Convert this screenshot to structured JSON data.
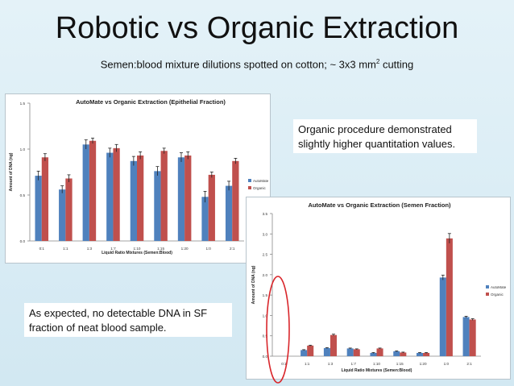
{
  "slide": {
    "title": "Robotic vs Organic Extraction",
    "subtitle_main": "Semen:blood mixture dilutions spotted on cotton; ~ 3x3 mm",
    "subtitle_sup": "2",
    "subtitle_tail": " cutting",
    "callout_top": "Organic procedure demonstrated slightly higher quantitation values.",
    "callout_bottom": "As expected, no detectable DNA in SF fraction of neat blood sample."
  },
  "colors": {
    "automate": "#4f81bd",
    "organic": "#c0504d",
    "ellipse": "#d9262b",
    "background": "#d9ecf4"
  },
  "chart_data": [
    {
      "type": "bar",
      "title": "AutoMate vs Organic Extraction (Epithelial Fraction)",
      "xlabel": "Liquid Ratio Mixtures (Semen:Blood)",
      "ylabel": "Amount of DNA (ng)",
      "ylim": [
        0,
        1.5
      ],
      "yticks": [
        "0.0",
        "0.5",
        "1.0",
        "1.5"
      ],
      "ytick_values": [
        0,
        0.5,
        1.0,
        1.5
      ],
      "categories": [
        "0:1",
        "1:1",
        "1:3",
        "1:7",
        "1:10",
        "1:15",
        "1:20",
        "1:0",
        "2:1"
      ],
      "series": [
        {
          "name": "AutoMate",
          "values": [
            0.71,
            0.56,
            1.05,
            0.96,
            0.87,
            0.76,
            0.91,
            0.48,
            0.6
          ]
        },
        {
          "name": "Organic",
          "values": [
            0.91,
            0.68,
            1.09,
            1.01,
            0.93,
            0.98,
            0.93,
            0.72,
            0.87
          ]
        }
      ],
      "errors": [
        [
          0.05,
          0.04,
          0.05,
          0.05,
          0.05,
          0.05,
          0.05,
          0.06,
          0.05
        ],
        [
          0.04,
          0.04,
          0.03,
          0.04,
          0.04,
          0.03,
          0.04,
          0.03,
          0.03
        ]
      ],
      "legend": "right",
      "grid": false
    },
    {
      "type": "bar",
      "title": "AutoMate vs Organic Extraction (Semen Fraction)",
      "xlabel": "Liquid Ratio Mixtures (Semen:Blood)",
      "ylabel": "Amount of DNA (ng)",
      "ylim": [
        0,
        3.5
      ],
      "yticks": [
        "0.0",
        "0.5",
        "1.0",
        "1.5",
        "2.0",
        "2.5",
        "3.0",
        "3.5"
      ],
      "ytick_values": [
        0,
        0.5,
        1.0,
        1.5,
        2.0,
        2.5,
        3.0,
        3.5
      ],
      "categories": [
        "0:1",
        "1:1",
        "1:3",
        "1:7",
        "1:10",
        "1:15",
        "1:20",
        "1:0",
        "2:1"
      ],
      "series": [
        {
          "name": "AutoMate",
          "values": [
            0.0,
            0.15,
            0.2,
            0.19,
            0.08,
            0.12,
            0.08,
            1.93,
            0.96
          ]
        },
        {
          "name": "Organic",
          "values": [
            0.0,
            0.26,
            0.52,
            0.17,
            0.19,
            0.09,
            0.08,
            2.89,
            0.9
          ]
        }
      ],
      "errors": [
        [
          0,
          0.01,
          0.01,
          0.01,
          0.01,
          0.01,
          0.01,
          0.06,
          0.02
        ],
        [
          0,
          0.01,
          0.02,
          0.01,
          0.01,
          0.01,
          0.01,
          0.12,
          0.02
        ]
      ],
      "legend": "right",
      "grid": false
    }
  ]
}
